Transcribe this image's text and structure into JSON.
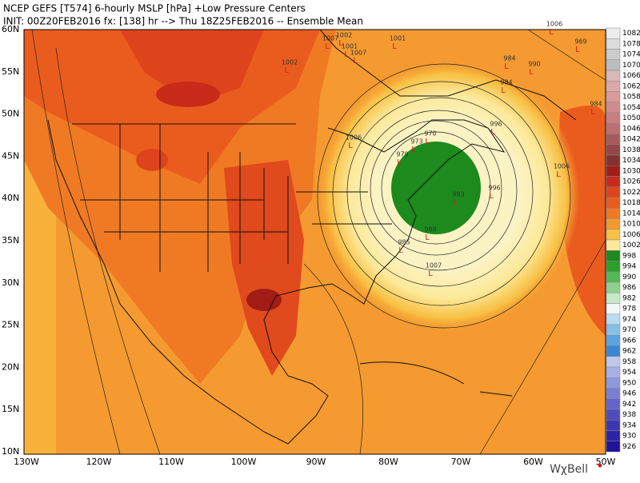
{
  "header": {
    "line1": "NCEP GEFS [T574] 6-hourly MSLP [hPa]  +Low Pressure Centers",
    "line2": "INIT: 00Z20FEB2016 fx: [138] hr --> Thu 18Z25FEB2016 -- Ensemble Mean"
  },
  "lat_labels": [
    "60N",
    "55N",
    "50N",
    "45N",
    "40N",
    "35N",
    "30N",
    "25N",
    "20N",
    "15N",
    "10N"
  ],
  "lon_labels": [
    "130W",
    "120W",
    "110W",
    "100W",
    "90W",
    "80W",
    "70W",
    "60W",
    "50W"
  ],
  "colorbar": [
    {
      "label": 1082,
      "color": "#ececec"
    },
    {
      "label": 1078,
      "color": "#dcdcdc"
    },
    {
      "label": 1074,
      "color": "#cccccc"
    },
    {
      "label": 1070,
      "color": "#bcbcbc"
    },
    {
      "label": 1066,
      "color": "#d8b8b8"
    },
    {
      "label": 1062,
      "color": "#dca8a8"
    },
    {
      "label": 1058,
      "color": "#d89a9a"
    },
    {
      "label": 1054,
      "color": "#d08c8c"
    },
    {
      "label": 1050,
      "color": "#c87e7e"
    },
    {
      "label": 1046,
      "color": "#bc7070"
    },
    {
      "label": 1042,
      "color": "#a85a5a"
    },
    {
      "label": 1038,
      "color": "#944646"
    },
    {
      "label": 1034,
      "color": "#84302c"
    },
    {
      "label": 1030,
      "color": "#a01c14"
    },
    {
      "label": 1026,
      "color": "#c82a1a"
    },
    {
      "label": 1022,
      "color": "#de441c"
    },
    {
      "label": 1018,
      "color": "#ea5c1e"
    },
    {
      "label": 1014,
      "color": "#f07a24"
    },
    {
      "label": 1010,
      "color": "#f59a30"
    },
    {
      "label": 1006,
      "color": "#f8c044"
    },
    {
      "label": 1002,
      "color": "#fce99a"
    },
    {
      "label": 998,
      "color": "#1c8a1c"
    },
    {
      "label": 994,
      "color": "#2aa02a"
    },
    {
      "label": 990,
      "color": "#54b854"
    },
    {
      "label": 986,
      "color": "#8ed08e"
    },
    {
      "label": 982,
      "color": "#c6eac6"
    },
    {
      "label": 978,
      "color": "#f2f8f8"
    },
    {
      "label": 974,
      "color": "#b8dcf0"
    },
    {
      "label": 970,
      "color": "#88c0ea"
    },
    {
      "label": 966,
      "color": "#5aa4e0"
    },
    {
      "label": 962,
      "color": "#3a88d4"
    },
    {
      "label": 958,
      "color": "#c0c8ec"
    },
    {
      "label": 954,
      "color": "#a8b0e4"
    },
    {
      "label": 950,
      "color": "#9098dc"
    },
    {
      "label": 946,
      "color": "#7a7ed2"
    },
    {
      "label": 942,
      "color": "#6464c8"
    },
    {
      "label": 938,
      "color": "#504cbc"
    },
    {
      "label": 934,
      "color": "#3e36b0"
    },
    {
      "label": 930,
      "color": "#2e22a4"
    },
    {
      "label": 926,
      "color": "#20129a"
    }
  ],
  "lows": [
    1002,
    1007,
    1001,
    1007,
    1001,
    1006,
    969,
    984,
    990,
    984,
    984,
    1002,
    996,
    970,
    1006,
    979,
    973,
    1006,
    996,
    983,
    988,
    985,
    1007
  ],
  "low_marker": "L",
  "logo": "WχBell"
}
